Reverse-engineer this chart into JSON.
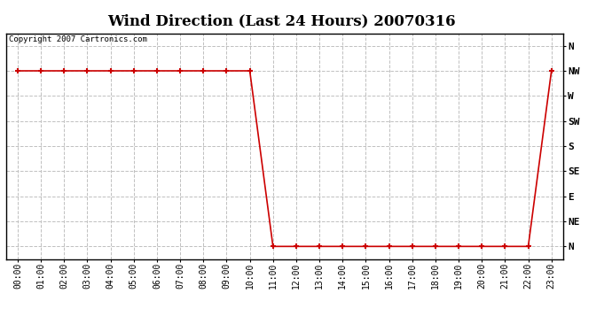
{
  "title": "Wind Direction (Last 24 Hours) 20070316",
  "copyright_text": "Copyright 2007 Cartronics.com",
  "background_color": "#ffffff",
  "line_color": "#cc0000",
  "marker_color": "#cc0000",
  "ytick_labels": [
    "N",
    "NE",
    "E",
    "SE",
    "S",
    "SW",
    "W",
    "NW",
    "N"
  ],
  "ytick_values": [
    0,
    1,
    2,
    3,
    4,
    5,
    6,
    7,
    8
  ],
  "xtick_labels": [
    "00:00",
    "01:00",
    "02:00",
    "03:00",
    "04:00",
    "05:00",
    "06:00",
    "07:00",
    "08:00",
    "09:00",
    "10:00",
    "11:00",
    "12:00",
    "13:00",
    "14:00",
    "15:00",
    "16:00",
    "17:00",
    "18:00",
    "19:00",
    "20:00",
    "21:00",
    "22:00",
    "23:00"
  ],
  "x_values": [
    0,
    1,
    2,
    3,
    4,
    5,
    6,
    7,
    8,
    9,
    10,
    11,
    12,
    13,
    14,
    15,
    16,
    17,
    18,
    19,
    20,
    21,
    22,
    23
  ],
  "y_values": [
    7,
    7,
    7,
    7,
    7,
    7,
    7,
    7,
    7,
    7,
    7,
    0,
    0,
    0,
    0,
    0,
    0,
    0,
    0,
    0,
    0,
    0,
    0,
    7
  ],
  "xlim": [
    -0.5,
    23.5
  ],
  "ylim": [
    -0.5,
    8.5
  ],
  "grid_color": "#c0c0c0",
  "grid_linestyle": "--",
  "title_fontsize": 12,
  "tick_fontsize": 7,
  "copyright_fontsize": 6.5
}
